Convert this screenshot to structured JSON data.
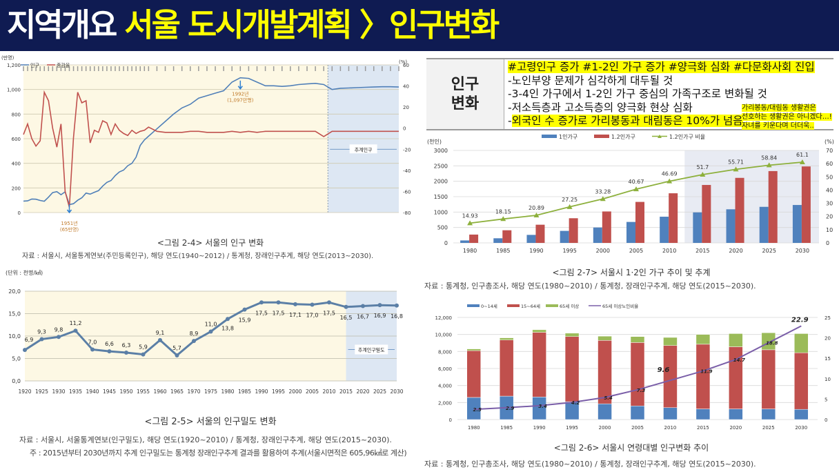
{
  "header": {
    "prefix": "지역개요",
    "title": "서울 도시개발계획 〉인구변화"
  },
  "info_box": {
    "label_line1": "인구",
    "label_line2": "변화",
    "hashtags": "#고령인구 증가 #1-2인 가구 증가 #양극화 심화 #다문화사회 진입",
    "bullets": [
      "-노인부양 문제가 심각하게 대두될 것",
      "-3-4인 가구에서 1-2인 가구 중심의 가족구조로 변화될 것",
      "-저소득층과 고소득층의 양극화 현상 심화"
    ],
    "last_bullet_dash": "-",
    "last_bullet": "외국인 수 증가로 가리봉동과 대림동은 10%가 넘음",
    "side_note": [
      "가리봉동/대림동 생활권은",
      "선호하는 생활권은 아니겠다…!",
      "자녀를 키운다며 더더욱.."
    ]
  },
  "captions": {
    "fig24_title": "<그림 2-4> 서울의 인구 변화",
    "fig24_source": "자료 : 서울시, 서울통계연보(주민등록인구), 해당 연도(1940~2012) / 통계청, 장래인구추계, 해당 연도(2013~2030).",
    "fig25_title": "<그림 2-5> 서울의 인구밀도 변화",
    "fig25_source": "자료 : 서울시, 서울통계연보(인구밀도), 해당 연도(1920~2010) / 통계청, 장래인구추계, 해당 연도(2015~2030).",
    "fig25_note": "주 : 2015년부터 2030년까지 추계 인구밀도는 통계청 장래인구추계 결과를 활용하여 추계(서울시면적은 605,96㎢로 계산)",
    "fig27_title": "<그림 2-7> 서울시 1·2인 가구 추이 및 추계",
    "fig27_source": "자료 : 통계청, 인구총조사, 해당 연도(1980~2010) / 통계청, 장래인구추계, 해당 연도(2015~2030).",
    "fig26_title": "<그림 2-6> 서울시 연령대별 인구변화 추이",
    "fig26_source": "자료 : 통계청, 인구총조사, 해당 연도(1980~2010) / 통계청, 장래인구추계, 해당 연도(2015~2030)."
  },
  "chart_data": [
    {
      "id": "fig24",
      "type": "line",
      "title": "서울의 인구 변화",
      "ylabel": "(만명)",
      "y2label": "(%)",
      "ylim": [
        0,
        1200
      ],
      "y2lim": [
        -80,
        60
      ],
      "yticks": [
        "0",
        "200",
        "400",
        "600",
        "800",
        "1,000",
        "1,200"
      ],
      "y2ticks": [
        "-80",
        "-60",
        "-40",
        "-20",
        "0",
        "20",
        "40",
        "60"
      ],
      "forecast_label": "추계인구",
      "annotations": [
        {
          "year": 1951,
          "text1": "1951년",
          "text2": "(65만명)"
        },
        {
          "year": 1992,
          "text1": "1992년",
          "text2": "(1,097만명)"
        }
      ],
      "x": [
        1940,
        1941,
        1942,
        1943,
        1944,
        1945,
        1946,
        1947,
        1948,
        1949,
        1950,
        1951,
        1952,
        1953,
        1954,
        1955,
        1956,
        1957,
        1958,
        1959,
        1960,
        1961,
        1962,
        1963,
        1964,
        1965,
        1966,
        1967,
        1968,
        1969,
        1970,
        1972,
        1974,
        1976,
        1978,
        1980,
        1982,
        1984,
        1986,
        1988,
        1990,
        1992,
        1994,
        1996,
        1998,
        2000,
        2002,
        2004,
        2006,
        2008,
        2010,
        2012,
        2014,
        2016,
        2018,
        2020,
        2022,
        2024,
        2026,
        2028,
        2030
      ],
      "series": [
        {
          "name": "인구",
          "color": "#4f7fb8",
          "axis": "left",
          "values": [
            93,
            95,
            110,
            108,
            98,
            92,
            125,
            162,
            170,
            145,
            168,
            65,
            72,
            100,
            120,
            158,
            150,
            165,
            178,
            215,
            245,
            260,
            300,
            330,
            345,
            380,
            400,
            450,
            545,
            590,
            620,
            680,
            740,
            800,
            850,
            880,
            930,
            950,
            970,
            990,
            1060,
            1095,
            1090,
            1060,
            1030,
            1030,
            1025,
            1030,
            1040,
            1045,
            1050,
            1040,
            1000,
            1010,
            1012,
            1015,
            1018,
            1020,
            1022,
            1022,
            1020
          ]
        },
        {
          "name": "증감율",
          "color": "#c0504d",
          "axis": "right",
          "values": [
            -6,
            4,
            -10,
            -17,
            -12,
            34,
            26,
            0,
            -18,
            4,
            -60,
            -75,
            -9,
            34,
            24,
            26,
            -14,
            -2,
            -4,
            7,
            5,
            -6,
            4,
            -2,
            -5,
            -7,
            -2,
            -5,
            -3,
            -2,
            1,
            -3,
            -4,
            -4,
            -4,
            -3,
            -3,
            -4,
            -4,
            -4,
            -3,
            -4,
            -3,
            -4,
            -3,
            -3,
            -3,
            -3,
            -3,
            -3,
            -3,
            -8,
            -3,
            -3,
            -3,
            -3,
            -3,
            -3,
            -3,
            -3,
            -3
          ]
        }
      ],
      "legend": "top-left"
    },
    {
      "id": "fig25",
      "type": "line",
      "title": "서울의 인구밀도 변화",
      "ylabel": "(단위 : 천명/㎢)",
      "ylim": [
        0,
        20
      ],
      "yticks": [
        "0,0",
        "5,0",
        "10,0",
        "15,0",
        "20,0"
      ],
      "forecast_label": "추계인구밀도",
      "categories": [
        "1920",
        "1925",
        "1930",
        "1935",
        "1940",
        "1945",
        "1950",
        "1955",
        "1960",
        "1965",
        "1970",
        "1975",
        "1980",
        "1985",
        "1990",
        "1995",
        "2000",
        "2005",
        "2010",
        "2015",
        "2020",
        "2025",
        "2030"
      ],
      "values": [
        6.9,
        9.3,
        9.8,
        11.2,
        7.0,
        6.6,
        6.3,
        5.9,
        9.1,
        5.7,
        8.9,
        11.0,
        13.8,
        15.9,
        17.5,
        17.5,
        17.1,
        17.0,
        17.5,
        16.5,
        16.7,
        16.9,
        16.8
      ],
      "labels": [
        "6,9",
        "9,3",
        "9,8",
        "11,2",
        "7,0",
        "6,6",
        "6,3",
        "5,9",
        "9,1",
        "5,7",
        "8,9",
        "11,0",
        "13,8",
        "15,9",
        "17,5",
        "17,5",
        "17,1",
        "17,0",
        "17,5",
        "16,5",
        "16,7",
        "16,9",
        "16,8"
      ],
      "color": "#5b7fa6"
    },
    {
      "id": "fig27",
      "type": "bar",
      "title": "서울시 1·2인 가구 추이 및 추계",
      "ylabel": "(천인)",
      "y2label": "(%)",
      "ylim": [
        0,
        3000
      ],
      "y2lim": [
        0,
        70
      ],
      "yticks": [
        "0",
        "500",
        "1000",
        "1500",
        "2000",
        "2500",
        "3000"
      ],
      "y2ticks": [
        "0",
        "10",
        "20",
        "30",
        "40",
        "50",
        "60",
        "70"
      ],
      "categories": [
        "1980",
        "1985",
        "1990",
        "1995",
        "2000",
        "2005",
        "2010",
        "2015",
        "2020",
        "2025",
        "2030"
      ],
      "series": [
        {
          "name": "1인가구",
          "color": "#4f81bd",
          "values": [
            80,
            150,
            260,
            390,
            500,
            680,
            850,
            990,
            1090,
            1170,
            1230
          ]
        },
        {
          "name": "1.2인가구",
          "color": "#c0504d",
          "values": [
            270,
            410,
            590,
            800,
            1020,
            1330,
            1610,
            1880,
            2110,
            2330,
            2480
          ]
        },
        {
          "name": "1.2인가구 비율",
          "color": "#8db03c",
          "axis": "right",
          "values": [
            14.93,
            18.15,
            20.89,
            27.25,
            33.28,
            40.67,
            46.69,
            51.7,
            55.71,
            58.84,
            61.1
          ],
          "labels": [
            "14.93",
            "18.15",
            "20.89",
            "27.25",
            "33.28",
            "40.67",
            "46.69",
            "51.7",
            "55.71",
            "58.84",
            "61.1"
          ]
        }
      ],
      "legend": "top"
    },
    {
      "id": "fig26",
      "type": "bar",
      "stacked": true,
      "title": "서울시 연령대별 인구변화 추이",
      "ylim": [
        0,
        12000
      ],
      "y2lim": [
        0,
        25
      ],
      "yticks": [
        "0",
        "2,000",
        "4,000",
        "6,000",
        "8,000",
        "10,000",
        "12,000"
      ],
      "y2ticks": [
        "0",
        "5",
        "10",
        "15",
        "20",
        "25"
      ],
      "categories": [
        "1980",
        "1985",
        "1990",
        "1995",
        "2000",
        "2005",
        "2010",
        "2015",
        "2020",
        "2025",
        "2030"
      ],
      "series": [
        {
          "name": "0~14세",
          "color": "#4f81bd",
          "values": [
            2600,
            2750,
            2650,
            2100,
            1850,
            1600,
            1400,
            1250,
            1250,
            1250,
            1200
          ]
        },
        {
          "name": "15~64세",
          "color": "#c0504d",
          "values": [
            5500,
            6600,
            7600,
            7650,
            7450,
            7450,
            7300,
            7600,
            7300,
            6950,
            6650
          ]
        },
        {
          "name": "65세 이상",
          "color": "#9bbb59",
          "values": [
            200,
            250,
            300,
            400,
            500,
            700,
            950,
            1150,
            1550,
            2000,
            2250
          ]
        },
        {
          "name": "65세 이상노인비율",
          "color": "#7a5ea8",
          "axis": "right",
          "values": [
            2.5,
            2.9,
            3.4,
            4.2,
            5.4,
            7.3,
            9.6,
            11.9,
            14.7,
            18.8,
            22.9
          ],
          "labels": [
            "2.5",
            "2.9",
            "3.4",
            "4.2",
            "5.4",
            "7.3",
            "9.6",
            "11.9",
            "14.7",
            "18.8",
            "22.9"
          ]
        }
      ],
      "legend": "top"
    }
  ]
}
